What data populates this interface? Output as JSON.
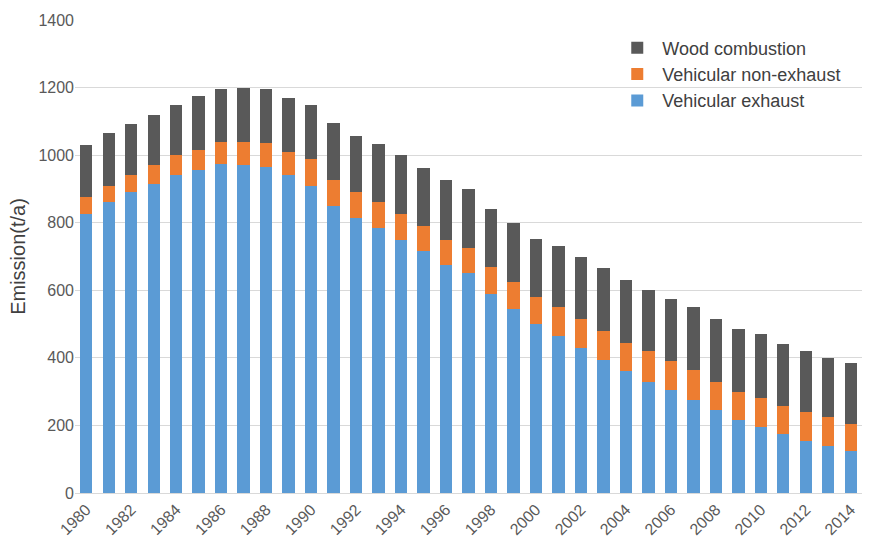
{
  "chart_data": {
    "type": "bar",
    "stacked": true,
    "y_label": "Emission(t/a)",
    "categories": [
      "1980",
      null,
      "1982",
      null,
      "1984",
      null,
      "1986",
      null,
      "1988",
      null,
      "1990",
      null,
      "1992",
      null,
      "1994",
      null,
      "1996",
      null,
      "1998",
      null,
      "2000",
      null,
      "2002",
      null,
      "2004",
      null,
      "2006",
      null,
      "2008",
      null,
      "2010",
      null,
      "2012",
      null,
      "2014"
    ],
    "series": [
      {
        "name": "Vehicular exhaust",
        "color": "#5b9bd5",
        "values": [
          825,
          860,
          890,
          915,
          940,
          955,
          975,
          970,
          965,
          940,
          910,
          850,
          815,
          785,
          750,
          715,
          675,
          650,
          590,
          545,
          500,
          465,
          430,
          395,
          360,
          330,
          305,
          275,
          245,
          215,
          195,
          175,
          155,
          140,
          125
        ]
      },
      {
        "name": "Vehicular non-exhaust",
        "color": "#ed7d31",
        "values": [
          50,
          50,
          50,
          55,
          60,
          60,
          65,
          70,
          70,
          70,
          80,
          75,
          75,
          75,
          75,
          75,
          75,
          75,
          80,
          80,
          80,
          85,
          85,
          85,
          85,
          90,
          85,
          90,
          85,
          85,
          85,
          83,
          85,
          85,
          80
        ]
      },
      {
        "name": "Wood combustion",
        "color": "#595959",
        "values": [
          155,
          155,
          152,
          148,
          148,
          160,
          155,
          160,
          160,
          158,
          158,
          170,
          168,
          172,
          175,
          172,
          175,
          175,
          172,
          175,
          172,
          180,
          185,
          185,
          185,
          180,
          185,
          185,
          185,
          185,
          190,
          182,
          180,
          175,
          180
        ]
      }
    ],
    "ylim": [
      0,
      1400
    ],
    "yticks": [
      0,
      200,
      400,
      600,
      800,
      1000,
      1200,
      1400
    ],
    "grid": true,
    "legend": "top right"
  }
}
